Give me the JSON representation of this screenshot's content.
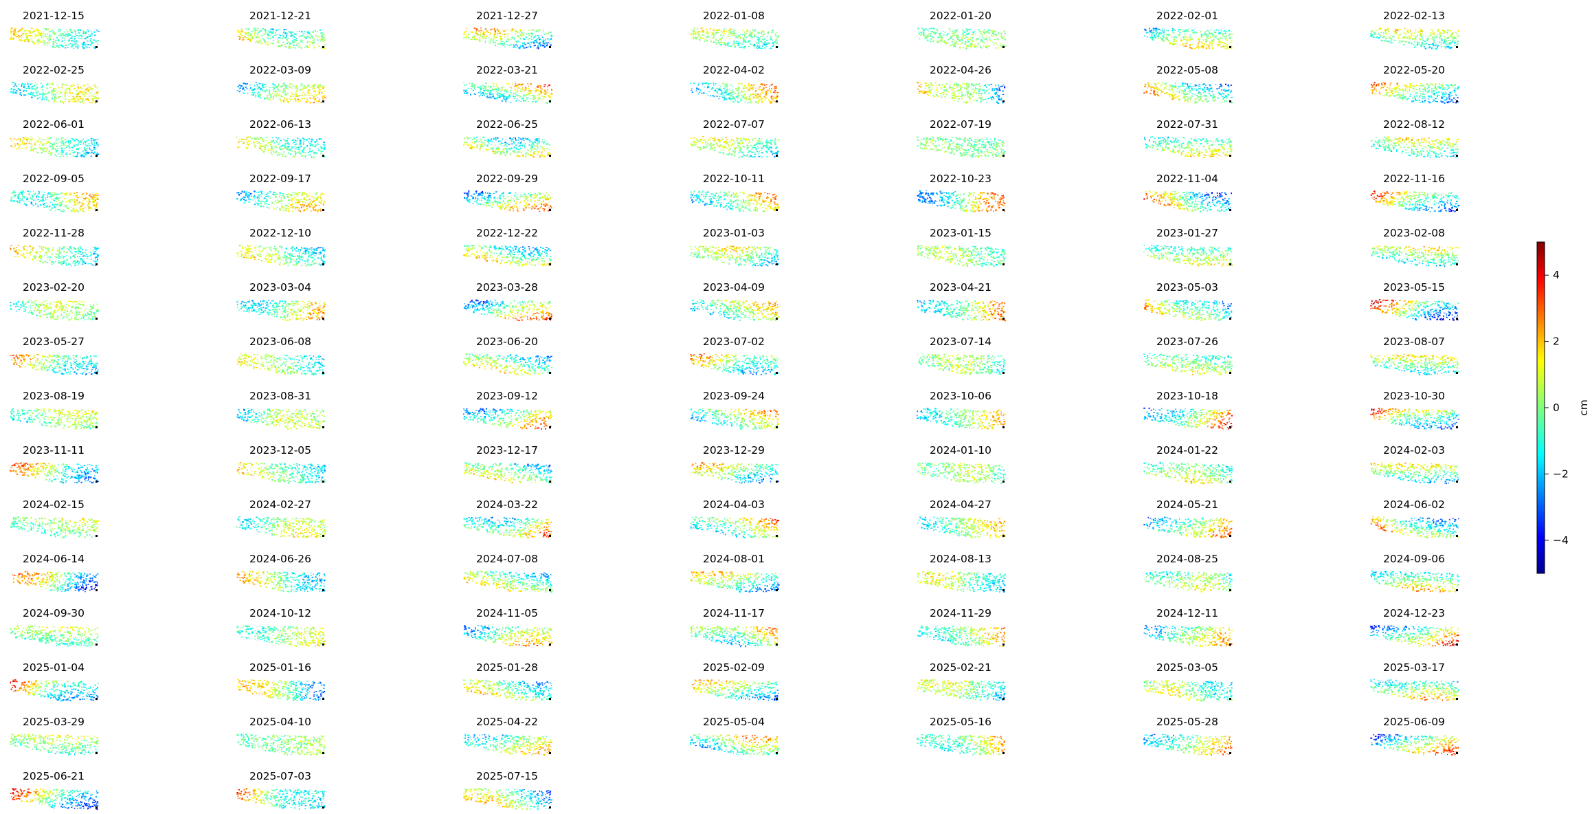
{
  "chart_data": {
    "type": "heatmap",
    "description_kind": "small multiples of displacement maps",
    "panel_titles": [
      "2021-12-15",
      "2021-12-21",
      "2021-12-27",
      "2022-01-08",
      "2022-01-20",
      "2022-02-01",
      "2022-02-13",
      "2022-02-25",
      "2022-03-09",
      "2022-03-21",
      "2022-04-02",
      "2022-04-26",
      "2022-05-08",
      "2022-05-20",
      "2022-06-01",
      "2022-06-13",
      "2022-06-25",
      "2022-07-07",
      "2022-07-19",
      "2022-07-31",
      "2022-08-12",
      "2022-09-05",
      "2022-09-17",
      "2022-09-29",
      "2022-10-11",
      "2022-10-23",
      "2022-11-04",
      "2022-11-16",
      "2022-11-28",
      "2022-12-10",
      "2022-12-22",
      "2023-01-03",
      "2023-01-15",
      "2023-01-27",
      "2023-02-08",
      "2023-02-20",
      "2023-03-04",
      "2023-03-28",
      "2023-04-09",
      "2023-04-21",
      "2023-05-03",
      "2023-05-15",
      "2023-05-27",
      "2023-06-08",
      "2023-06-20",
      "2023-07-02",
      "2023-07-14",
      "2023-07-26",
      "2023-08-07",
      "2023-08-19",
      "2023-08-31",
      "2023-09-12",
      "2023-09-24",
      "2023-10-06",
      "2023-10-18",
      "2023-10-30",
      "2023-11-11",
      "2023-12-05",
      "2023-12-17",
      "2023-12-29",
      "2024-01-10",
      "2024-01-22",
      "2024-02-03",
      "2024-02-15",
      "2024-02-27",
      "2024-03-22",
      "2024-04-03",
      "2024-04-27",
      "2024-05-21",
      "2024-06-02",
      "2024-06-14",
      "2024-06-26",
      "2024-07-08",
      "2024-08-01",
      "2024-08-13",
      "2024-08-25",
      "2024-09-06",
      "2024-09-30",
      "2024-10-12",
      "2024-11-05",
      "2024-11-17",
      "2024-11-29",
      "2024-12-11",
      "2024-12-23",
      "2025-01-04",
      "2025-01-16",
      "2025-01-28",
      "2025-02-09",
      "2025-02-21",
      "2025-03-05",
      "2025-03-17",
      "2025-03-29",
      "2025-04-10",
      "2025-04-22",
      "2025-05-04",
      "2025-05-16",
      "2025-05-28",
      "2025-06-09",
      "2025-06-21",
      "2025-07-03",
      "2025-07-15"
    ],
    "colorbar": {
      "label": "cm",
      "range": [
        -5,
        5
      ],
      "ticks": [
        4,
        2,
        0,
        -2,
        -4
      ],
      "tick_labels": [
        "4",
        "2",
        "0",
        "−2",
        "−4"
      ],
      "colormap": "jet"
    }
  }
}
